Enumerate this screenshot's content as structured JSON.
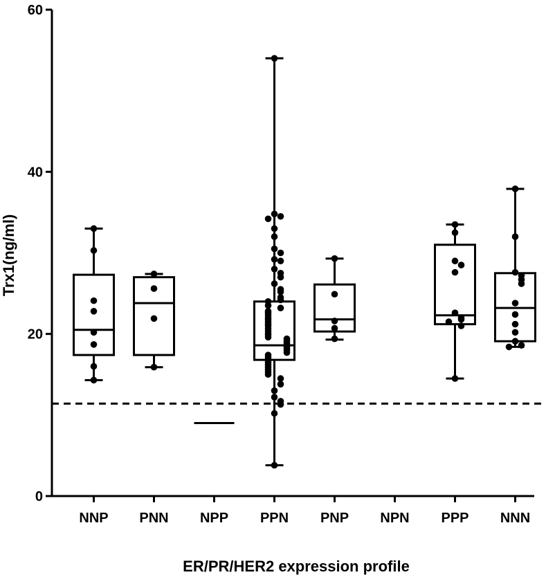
{
  "chart_data": {
    "type": "box",
    "title": "",
    "xlabel": "ER/PR/HER2 expression profile",
    "ylabel": "Trx1(ng/ml)",
    "ylim": [
      0,
      60
    ],
    "yticks": [
      0,
      20,
      40,
      60
    ],
    "ytick_labels": [
      "0",
      "20",
      "40",
      "60"
    ],
    "grid": false,
    "reference_line": {
      "y": 11.4,
      "style": "dashed"
    },
    "categories": [
      "NNP",
      "PNN",
      "NPP",
      "PPN",
      "PNP",
      "NPN",
      "PPP",
      "NNN"
    ],
    "boxes": [
      {
        "category": "NNP",
        "min": 14.3,
        "q1": 17.4,
        "median": 20.5,
        "q3": 27.3,
        "max": 33.0,
        "points": [
          33.0,
          30.3,
          24.1,
          22.8,
          20.2,
          18.7,
          16.0,
          14.3
        ]
      },
      {
        "category": "PNN",
        "min": 15.9,
        "q1": 17.4,
        "median": 23.8,
        "q3": 27.0,
        "max": 27.4,
        "points": [
          27.4,
          25.6,
          21.9,
          15.9
        ]
      },
      {
        "category": "NPP",
        "min": 9.0,
        "q1": 9.0,
        "median": 9.0,
        "q3": 9.0,
        "max": 9.0,
        "points": []
      },
      {
        "category": "PPN",
        "min": 3.8,
        "q1": 16.8,
        "median": 18.6,
        "q3": 24.0,
        "max": 54.0,
        "points": [
          54.0,
          34.8,
          34.5,
          34.2,
          33.0,
          32.0,
          30.5,
          30.0,
          29.2,
          29.0,
          28.0,
          27.5,
          27.0,
          26.2,
          25.5,
          25.2,
          24.5,
          24.2,
          24.0,
          23.5,
          23.2,
          22.8,
          22.6,
          22.3,
          22.0,
          21.8,
          21.5,
          21.2,
          21.0,
          20.7,
          20.4,
          20.1,
          19.9,
          19.6,
          19.4,
          19.2,
          19.0,
          18.8,
          18.6,
          18.4,
          18.2,
          18.0,
          17.7,
          17.4,
          17.1,
          16.8,
          16.5,
          16.2,
          15.9,
          15.6,
          15.3,
          15.0,
          14.5,
          13.8,
          13.0,
          12.2,
          11.7,
          11.3,
          10.2,
          3.8
        ]
      },
      {
        "category": "PNP",
        "min": 19.3,
        "q1": 20.3,
        "median": 21.8,
        "q3": 26.1,
        "max": 29.3,
        "points": [
          29.3,
          24.9,
          21.6,
          20.7,
          19.4
        ]
      },
      {
        "category": "NPN",
        "points": []
      },
      {
        "category": "PPP",
        "min": 14.5,
        "q1": 21.2,
        "median": 22.3,
        "q3": 31.0,
        "max": 33.5,
        "points": [
          33.5,
          32.5,
          29.0,
          28.5,
          27.6,
          22.6,
          22.0,
          21.8,
          21.5,
          21.0,
          14.5
        ]
      },
      {
        "category": "NNN",
        "min": 18.4,
        "q1": 19.1,
        "median": 23.2,
        "q3": 27.5,
        "max": 37.9,
        "points": [
          37.9,
          32.0,
          27.6,
          27.2,
          26.7,
          26.2,
          23.8,
          22.4,
          21.2,
          20.2,
          19.1,
          18.6,
          18.4
        ]
      }
    ]
  }
}
